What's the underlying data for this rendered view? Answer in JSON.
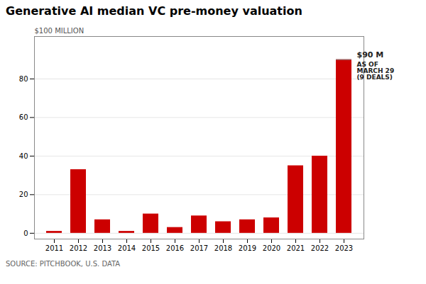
{
  "chart_data": {
    "type": "bar",
    "title": "Generative AI median VC pre-money valuation",
    "ylabel": "$100 MILLION",
    "source": "SOURCE: PITCHBOOK, U.S. DATA",
    "categories": [
      "2011",
      "2012",
      "2013",
      "2014",
      "2015",
      "2016",
      "2017",
      "2018",
      "2019",
      "2020",
      "2021",
      "2022",
      "2023"
    ],
    "values": [
      1,
      33,
      7,
      1,
      10,
      3,
      9,
      6,
      7,
      8,
      35,
      40,
      90
    ],
    "color": "#CC0000",
    "ylim": [
      -3,
      102
    ],
    "yticks": [
      0,
      20,
      40,
      60,
      80
    ],
    "grid": true,
    "annotations": [
      {
        "text": "$90 M",
        "x": "2023",
        "y": 90
      },
      {
        "text": "AS OF\nMARCH 29\n(9 DEALS)",
        "x": "2023",
        "y": 90
      }
    ]
  }
}
